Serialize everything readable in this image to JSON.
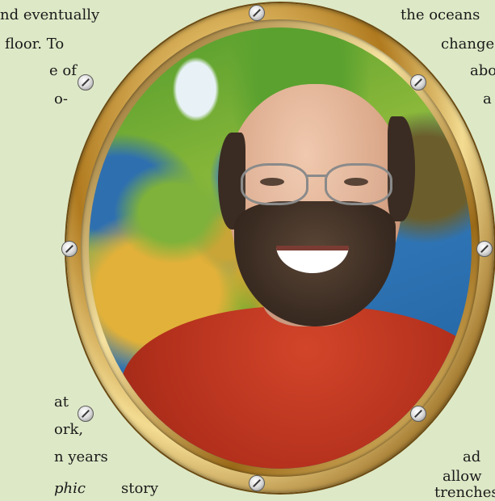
{
  "text_lines": {
    "l1": "nd eventually",
    "l2": "floor. To",
    "l3": "e of",
    "l4": "o-",
    "l5": "at",
    "l6": "ork,",
    "l7": "n years",
    "l8": "phic",
    "l9": "story",
    "r1": "the oceans",
    "r2": "change",
    "r3": "abo",
    "r4": "a",
    "r5": "ad",
    "r6": "allow",
    "r7": "trenches"
  },
  "photo": {
    "description_icon": "porthole-portrait-icon",
    "frame_color": "#c9a24a",
    "shirt_color": "#b3301c"
  }
}
